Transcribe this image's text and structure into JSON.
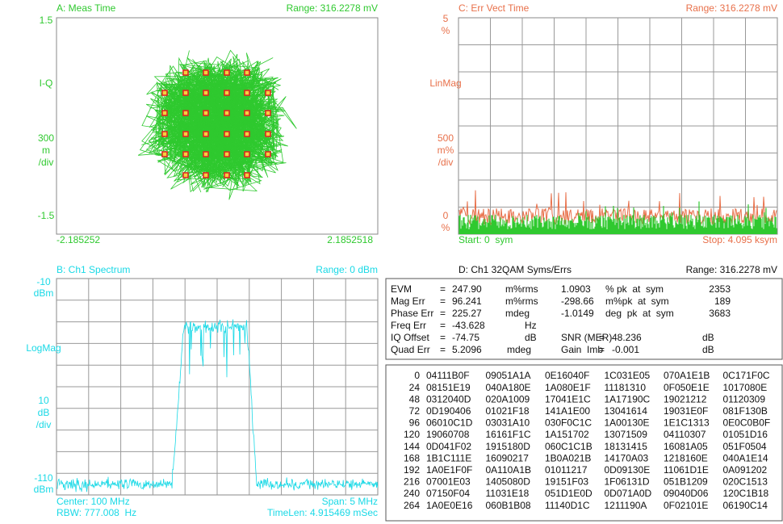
{
  "panel_a": {
    "title": "A: Meas Time",
    "range": "Range: 316.2278 mV",
    "y_labels": [
      "1.5",
      "I-Q",
      "300",
      "m",
      "/div",
      "-1.5"
    ],
    "x_labels": [
      "-2.185252",
      "2.1852518"
    ]
  },
  "panel_c": {
    "title": "C: Err Vect Time",
    "range": "Range: 316.2278 mV",
    "y_labels": [
      "5",
      "%",
      "LinMag",
      "500",
      "m%",
      "/div",
      "0",
      "%"
    ],
    "start": "Start: 0  sym",
    "stop": "Stop: 4.095 ksym"
  },
  "panel_b": {
    "title": "B: Ch1 Spectrum",
    "range": "Range: 0 dBm",
    "y_labels": [
      "-10",
      "dBm",
      "LogMag",
      "10",
      "dB",
      "/div",
      "-110",
      "dBm"
    ],
    "footer": [
      "Center: 100 MHz",
      "Span: 5 MHz",
      "RBW: 777.008  Hz",
      "TimeLen: 4.915469 mSec"
    ]
  },
  "panel_d": {
    "title": "D: Ch1 32QAM Syms/Errs",
    "range": "Range: 316.2278 mV",
    "metrics": [
      [
        "EVM",
        "=",
        "247.90",
        "m%rms",
        "1.0903",
        "% pk  at  sym",
        "2353"
      ],
      [
        "Mag Err",
        "=",
        "96.241",
        "m%rms",
        "-298.66",
        "m%pk  at  sym",
        "189"
      ],
      [
        "Phase Err",
        "=",
        "225.27",
        "mdeg",
        "-1.0149",
        "deg  pk  at  sym",
        "3683"
      ],
      [
        "Freq Err",
        "=",
        "-43.628",
        "Hz"
      ],
      [
        "IQ Offset",
        "=",
        "-74.75",
        "dB",
        "SNR (MER)",
        "=",
        "48.236",
        "dB"
      ],
      [
        "Quad Err",
        "=",
        "5.2096",
        "mdeg",
        "Gain  Imb",
        "=",
        "-0.001",
        "dB"
      ]
    ],
    "symbols": [
      [
        "0",
        "04111B0F",
        "09051A1A",
        "0E16040F",
        "1C031E05",
        "070A1E1B",
        "0C171F0C"
      ],
      [
        "24",
        "08151E19",
        "040A180E",
        "1A080E1F",
        "11181310",
        "0F050E1E",
        "1017080E"
      ],
      [
        "48",
        "0312040D",
        "020A1009",
        "17041E1C",
        "1A17190C",
        "19021212",
        "01120309"
      ],
      [
        "72",
        "0D190406",
        "01021F18",
        "141A1E00",
        "13041614",
        "19031E0F",
        "081F130B"
      ],
      [
        "96",
        "06010C1D",
        "03031A10",
        "030F0C1C",
        "1A00130E",
        "1E1C1313",
        "0E0C0B0F"
      ],
      [
        "120",
        "19060708",
        "16161F1C",
        "1A151702",
        "13071509",
        "04110307",
        "01051D16"
      ],
      [
        "144",
        "0D041F02",
        "1915180D",
        "060C1C1B",
        "18131415",
        "16081A05",
        "051F0504"
      ],
      [
        "168",
        "1B1C111E",
        "16090217",
        "1B0A021B",
        "14170A03",
        "1218160E",
        "040A1E14"
      ],
      [
        "192",
        "1A0E1F0F",
        "0A110A1B",
        "01011217",
        "0D09130E",
        "11061D1E",
        "0A091202"
      ],
      [
        "216",
        "07001E03",
        "1405080D",
        "19151F03",
        "1F06131D",
        "051B1209",
        "020C1513"
      ],
      [
        "240",
        "07150F04",
        "11031E18",
        "051D1E0D",
        "0D071A0D",
        "09040D06",
        "120C1B18"
      ],
      [
        "264",
        "1A0E0E16",
        "060B1B08",
        "11140D1C",
        "1211190A",
        "0F02101E",
        "06190C14"
      ]
    ]
  }
}
